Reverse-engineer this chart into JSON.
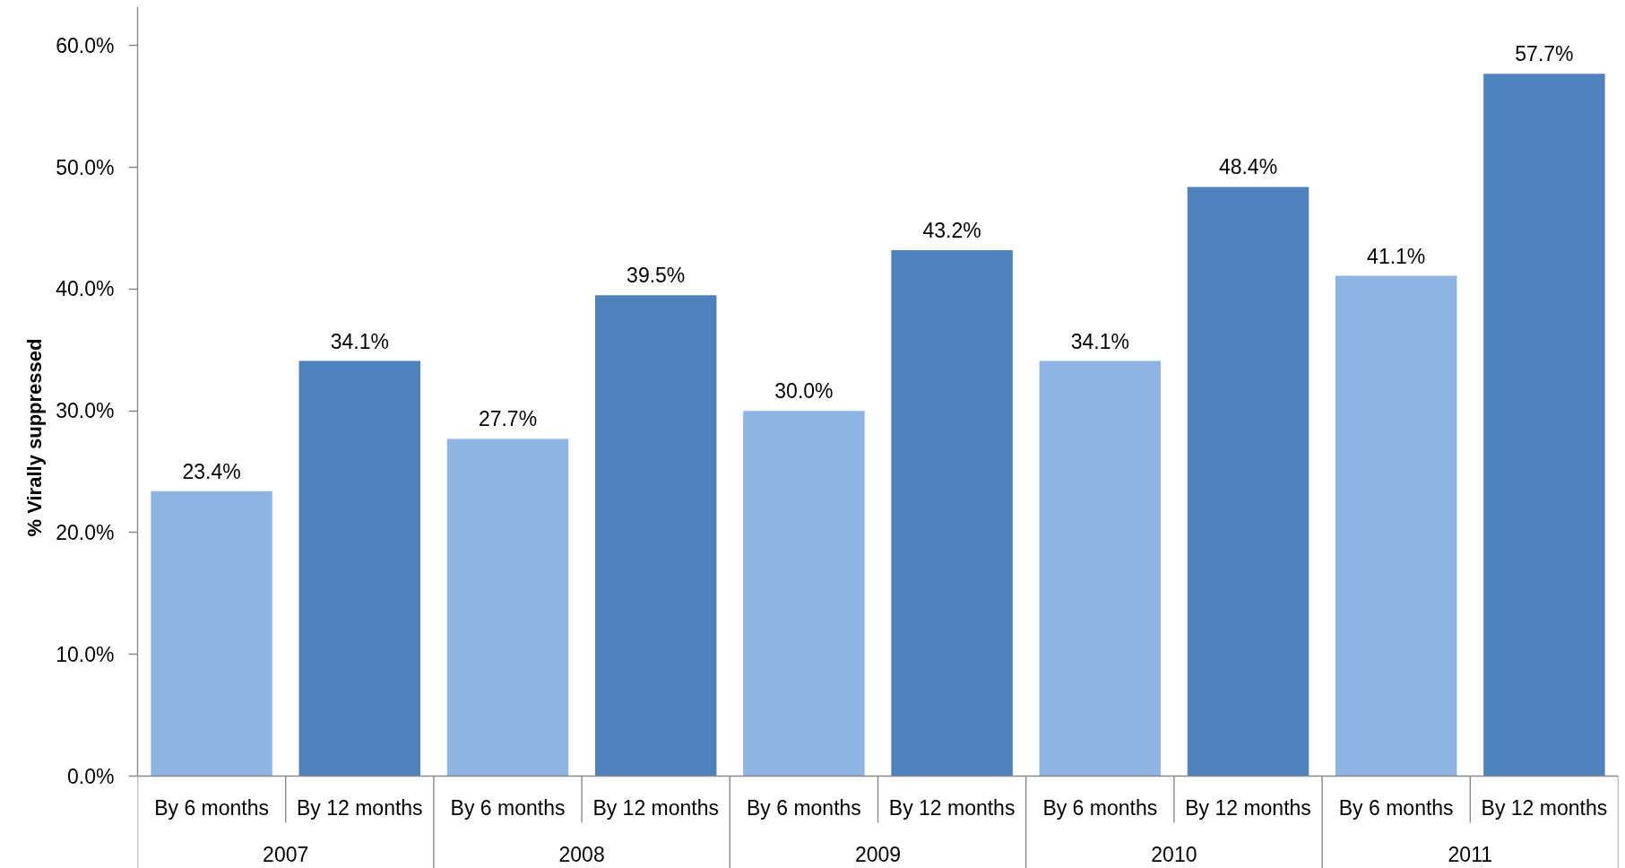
{
  "chart_data": {
    "type": "bar",
    "ylabel": "% Virally suppressed",
    "categories": [
      "2007",
      "2008",
      "2009",
      "2010",
      "2011"
    ],
    "series": [
      {
        "name": "By 6 months",
        "color": "#8eb4e3",
        "values": [
          23.4,
          27.7,
          30.0,
          34.1,
          41.1
        ],
        "value_labels": [
          "23.4%",
          "27.7%",
          "30.0%",
          "34.1%",
          "41.1%"
        ]
      },
      {
        "name": "By 12 months",
        "color": "#4f81bd",
        "values": [
          34.1,
          39.5,
          43.2,
          48.4,
          57.7
        ],
        "value_labels": [
          "34.1%",
          "39.5%",
          "43.2%",
          "48.4%",
          "57.7%"
        ]
      }
    ],
    "ylim": [
      0,
      63.2
    ],
    "yticks": [
      {
        "value": 0,
        "label": "0.0%"
      },
      {
        "value": 10,
        "label": "10.0%"
      },
      {
        "value": 20,
        "label": "20.0%"
      },
      {
        "value": 30,
        "label": "30.0%"
      },
      {
        "value": 40,
        "label": "40.0%"
      },
      {
        "value": 50,
        "label": "50.0%"
      },
      {
        "value": 60,
        "label": "60.0%"
      }
    ]
  }
}
